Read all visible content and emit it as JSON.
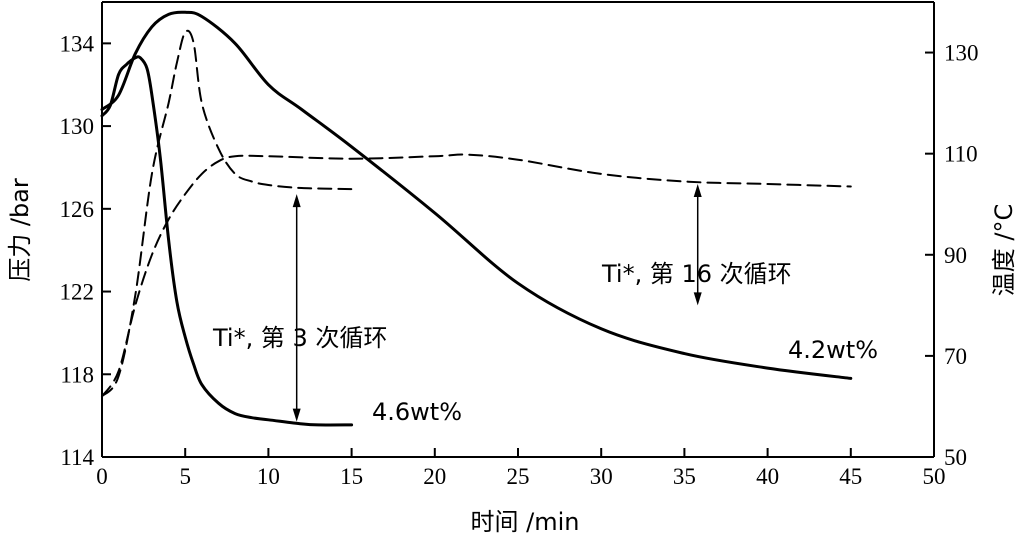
{
  "chart_data": {
    "type": "line",
    "xlabel": "时间 /min",
    "ylabel_left": "压力 /bar",
    "ylabel_right": "温度 /°C",
    "xlim": [
      0,
      50
    ],
    "ylim_left": [
      114,
      136
    ],
    "ylim_right": [
      50,
      140
    ],
    "x_ticks": [
      "0",
      "5",
      "10",
      "15",
      "20",
      "25",
      "30",
      "35",
      "40",
      "45",
      "50"
    ],
    "y_left_ticks": [
      "114",
      "118",
      "122",
      "126",
      "130",
      "134"
    ],
    "y_right_ticks": [
      "50",
      "70",
      "90",
      "110",
      "130"
    ],
    "grid": false,
    "series": [
      {
        "label": "4.6wt%",
        "axis": "left",
        "style": "solid",
        "x": [
          0,
          0.5,
          1,
          1.5,
          2,
          2.3,
          2.7,
          3,
          3.5,
          4,
          4.5,
          5,
          5.5,
          6,
          7,
          8,
          9,
          10,
          12,
          13,
          15
        ],
        "y": [
          130.5,
          131,
          132.5,
          133,
          133.3,
          133.3,
          132.8,
          131.5,
          128.5,
          124.5,
          121.5,
          119.8,
          118.5,
          117.5,
          116.6,
          116.1,
          115.9,
          115.8,
          115.6,
          115.55,
          115.55
        ]
      },
      {
        "label": "4.2wt%",
        "axis": "left",
        "style": "solid",
        "x": [
          0,
          1,
          2,
          3,
          4,
          5,
          6,
          8,
          10,
          12,
          15,
          20,
          25,
          30,
          35,
          40,
          45
        ],
        "y": [
          130.8,
          131.5,
          133.5,
          134.8,
          135.4,
          135.5,
          135.3,
          134,
          132,
          130.8,
          129,
          125.8,
          122.4,
          120.2,
          119,
          118.3,
          117.8
        ]
      },
      {
        "name": "Ti*, 第 3 次循环",
        "axis": "right",
        "style": "dashed",
        "x": [
          0,
          1,
          2,
          3,
          4,
          4.5,
          5,
          5.5,
          6,
          7,
          8,
          9,
          10,
          12,
          15
        ],
        "y": [
          62,
          66,
          82,
          106,
          120,
          128,
          134,
          132,
          120,
          111,
          106,
          104.5,
          103.8,
          103.2,
          103
        ]
      },
      {
        "name": "Ti*, 第 16 次循环",
        "axis": "right",
        "style": "dashed",
        "x": [
          0,
          1,
          2,
          3,
          4,
          5,
          6,
          7,
          8,
          10,
          15,
          20,
          22,
          25,
          30,
          35,
          40,
          45
        ],
        "y": [
          62,
          67,
          80,
          90,
          97,
          102,
          106,
          108.5,
          109.5,
          109.5,
          109,
          109.5,
          109.8,
          108.8,
          106,
          104.5,
          104,
          103.5
        ]
      }
    ],
    "annotations": [
      {
        "text": "Ti*, 第 3 次循环"
      },
      {
        "text": "Ti*, 第 16 次循环"
      },
      {
        "text": "4.6wt%"
      },
      {
        "text": "4.2wt%"
      }
    ]
  }
}
